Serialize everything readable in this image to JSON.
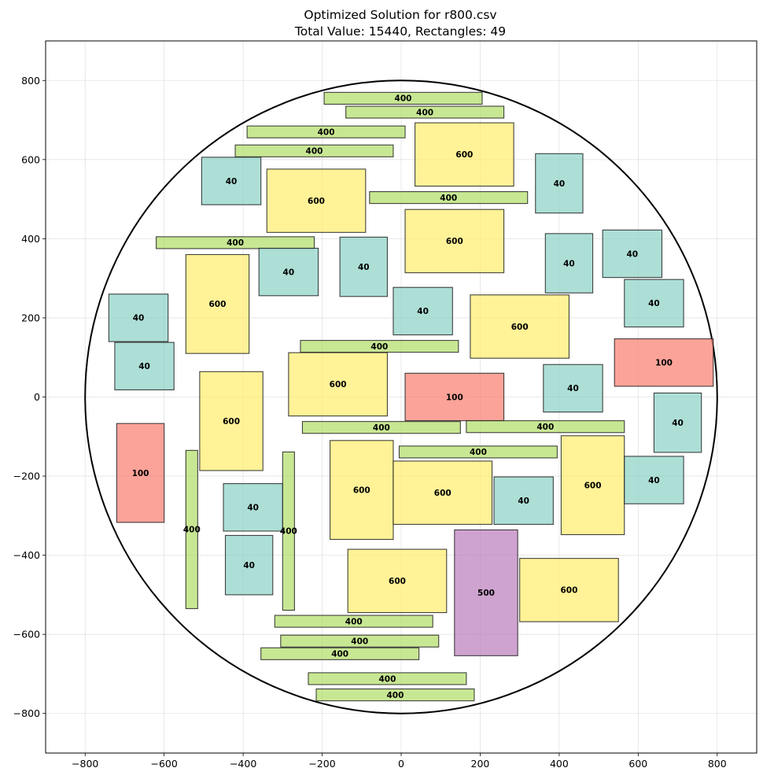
{
  "chart_data": {
    "type": "rectangle-packing",
    "title_line1": "Optimized Solution for r800.csv",
    "title_line2": "Total Value: 15440, Rectangles: 49",
    "xlim": [
      -900,
      900
    ],
    "ylim": [
      -900,
      900
    ],
    "xticks": [
      -800,
      -600,
      -400,
      -200,
      0,
      200,
      400,
      600,
      800
    ],
    "yticks": [
      -800,
      -600,
      -400,
      -200,
      0,
      200,
      400,
      600,
      800
    ],
    "grid": true,
    "circle": {
      "cx": 0,
      "cy": 0,
      "r": 800
    },
    "colors": {
      "40": "#8dd3c7",
      "100": "#fb8072",
      "400": "#b3de69",
      "500": "#bc80bd",
      "600": "#ffed6f"
    },
    "rectangles": [
      {
        "x": -195,
        "y": 740,
        "w": 400,
        "h": 30,
        "value": 400
      },
      {
        "x": -140,
        "y": 705,
        "w": 400,
        "h": 30,
        "value": 400
      },
      {
        "x": -390,
        "y": 655,
        "w": 400,
        "h": 30,
        "value": 400
      },
      {
        "x": -420,
        "y": 607,
        "w": 400,
        "h": 30,
        "value": 400
      },
      {
        "x": 35,
        "y": 533,
        "w": 250,
        "h": 160,
        "value": 600
      },
      {
        "x": -505,
        "y": 486,
        "w": 150,
        "h": 120,
        "value": 40
      },
      {
        "x": -340,
        "y": 416,
        "w": 250,
        "h": 160,
        "value": 600
      },
      {
        "x": 340,
        "y": 465,
        "w": 120,
        "h": 150,
        "value": 40
      },
      {
        "x": -80,
        "y": 489,
        "w": 400,
        "h": 30,
        "value": 400
      },
      {
        "x": -620,
        "y": 375,
        "w": 400,
        "h": 30,
        "value": 400
      },
      {
        "x": 10,
        "y": 314,
        "w": 250,
        "h": 160,
        "value": 600
      },
      {
        "x": -360,
        "y": 256,
        "w": 150,
        "h": 120,
        "value": 40
      },
      {
        "x": -155,
        "y": 254,
        "w": 120,
        "h": 150,
        "value": 40
      },
      {
        "x": 365,
        "y": 263,
        "w": 120,
        "h": 150,
        "value": 40
      },
      {
        "x": 510,
        "y": 302,
        "w": 150,
        "h": 120,
        "value": 40
      },
      {
        "x": -545,
        "y": 110,
        "w": 160,
        "h": 250,
        "value": 600
      },
      {
        "x": -740,
        "y": 140,
        "w": 150,
        "h": 120,
        "value": 40
      },
      {
        "x": -20,
        "y": 157,
        "w": 150,
        "h": 120,
        "value": 40
      },
      {
        "x": 175,
        "y": 98,
        "w": 250,
        "h": 160,
        "value": 600
      },
      {
        "x": 565,
        "y": 177,
        "w": 150,
        "h": 120,
        "value": 40
      },
      {
        "x": -255,
        "y": 113,
        "w": 400,
        "h": 30,
        "value": 400
      },
      {
        "x": -725,
        "y": 18,
        "w": 150,
        "h": 120,
        "value": 40
      },
      {
        "x": -285,
        "y": -48,
        "w": 250,
        "h": 160,
        "value": 600
      },
      {
        "x": 540,
        "y": 27,
        "w": 250,
        "h": 120,
        "value": 100
      },
      {
        "x": 10,
        "y": -60,
        "w": 250,
        "h": 120,
        "value": 100
      },
      {
        "x": 360,
        "y": -38,
        "w": 150,
        "h": 120,
        "value": 40
      },
      {
        "x": -510,
        "y": -186,
        "w": 160,
        "h": 250,
        "value": 600
      },
      {
        "x": 640,
        "y": -140,
        "w": 120,
        "h": 150,
        "value": 40
      },
      {
        "x": -250,
        "y": -92,
        "w": 400,
        "h": 30,
        "value": 400
      },
      {
        "x": 165,
        "y": -90,
        "w": 400,
        "h": 30,
        "value": 400
      },
      {
        "x": -720,
        "y": -317,
        "w": 120,
        "h": 250,
        "value": 100
      },
      {
        "x": -5,
        "y": -154,
        "w": 400,
        "h": 30,
        "value": 400
      },
      {
        "x": 405,
        "y": -348,
        "w": 160,
        "h": 250,
        "value": 600
      },
      {
        "x": -545,
        "y": -535,
        "w": 30,
        "h": 400,
        "value": 400
      },
      {
        "x": -180,
        "y": -360,
        "w": 160,
        "h": 250,
        "value": 600
      },
      {
        "x": -20,
        "y": -322,
        "w": 250,
        "h": 160,
        "value": 600
      },
      {
        "x": 235,
        "y": -322,
        "w": 150,
        "h": 120,
        "value": 40
      },
      {
        "x": 565,
        "y": -270,
        "w": 150,
        "h": 120,
        "value": 40
      },
      {
        "x": -450,
        "y": -339,
        "w": 150,
        "h": 120,
        "value": 40
      },
      {
        "x": -300,
        "y": -539,
        "w": 30,
        "h": 400,
        "value": 400
      },
      {
        "x": -445,
        "y": -500,
        "w": 120,
        "h": 150,
        "value": 40
      },
      {
        "x": 135,
        "y": -654,
        "w": 160,
        "h": 318,
        "value": 500
      },
      {
        "x": -135,
        "y": -545,
        "w": 250,
        "h": 160,
        "value": 600
      },
      {
        "x": 300,
        "y": -568,
        "w": 250,
        "h": 160,
        "value": 600
      },
      {
        "x": -320,
        "y": -582,
        "w": 400,
        "h": 30,
        "value": 400
      },
      {
        "x": -305,
        "y": -632,
        "w": 400,
        "h": 30,
        "value": 400
      },
      {
        "x": -355,
        "y": -664,
        "w": 400,
        "h": 30,
        "value": 400
      },
      {
        "x": -235,
        "y": -727,
        "w": 400,
        "h": 30,
        "value": 400
      },
      {
        "x": -215,
        "y": -768,
        "w": 400,
        "h": 30,
        "value": 400
      }
    ]
  }
}
